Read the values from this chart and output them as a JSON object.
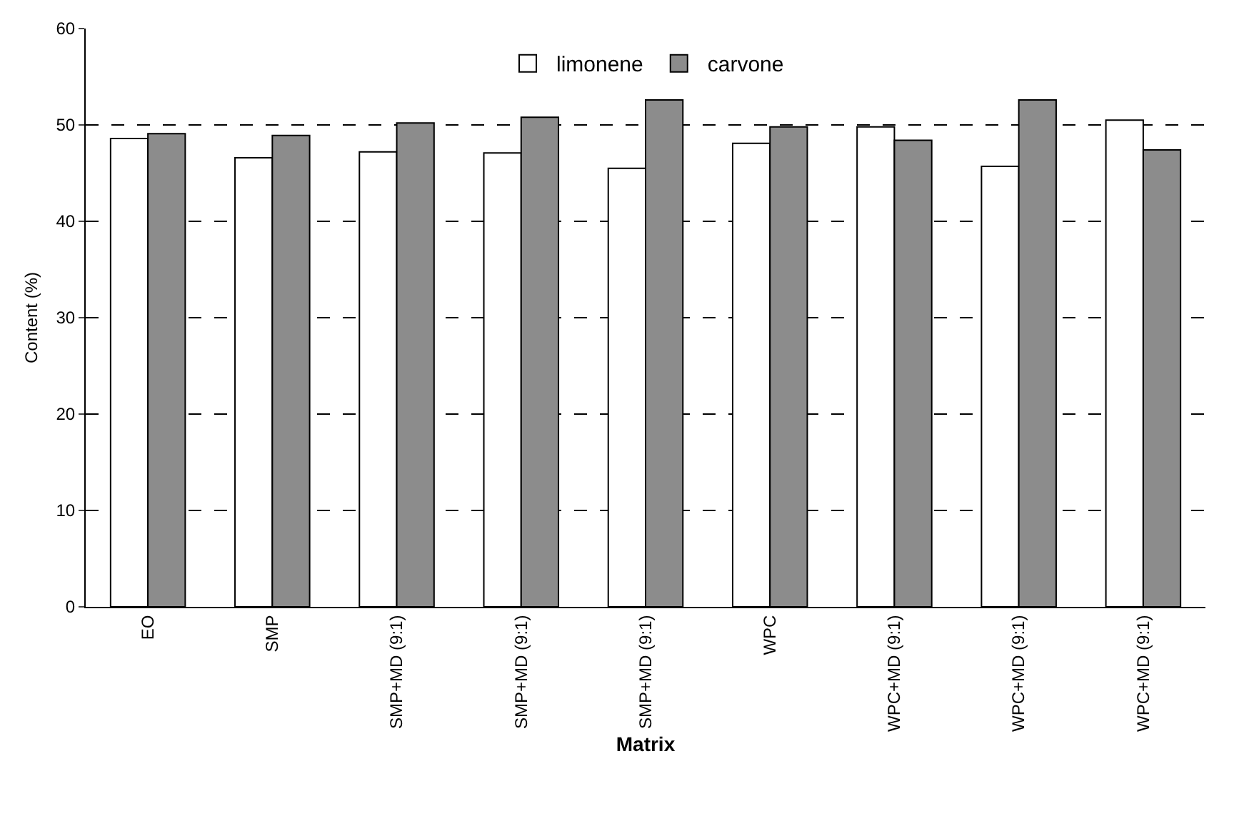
{
  "chart_data": {
    "type": "bar",
    "xlabel": "Matrix",
    "ylabel": "Content (%)",
    "categories": [
      "EO",
      "SMP",
      "SMP+MD (9:1)",
      "SMP+MD (9:1)",
      "SMP+MD (9:1)",
      "WPC",
      "WPC+MD (9:1)",
      "WPC+MD (9:1)",
      "WPC+MD (9:1)"
    ],
    "series": [
      {
        "name": "limonene",
        "color": "#ffffff",
        "values": [
          48.6,
          46.6,
          47.2,
          47.1,
          45.5,
          48.1,
          49.8,
          45.7,
          50.5
        ]
      },
      {
        "name": "carvone",
        "color": "#8c8c8c",
        "values": [
          49.1,
          48.9,
          50.2,
          50.8,
          52.6,
          49.8,
          48.4,
          52.6,
          47.4
        ]
      }
    ],
    "ylim": [
      0,
      60
    ],
    "yticks": [
      0,
      10,
      20,
      30,
      40,
      50,
      60
    ],
    "grid": "y",
    "legend": "top"
  }
}
